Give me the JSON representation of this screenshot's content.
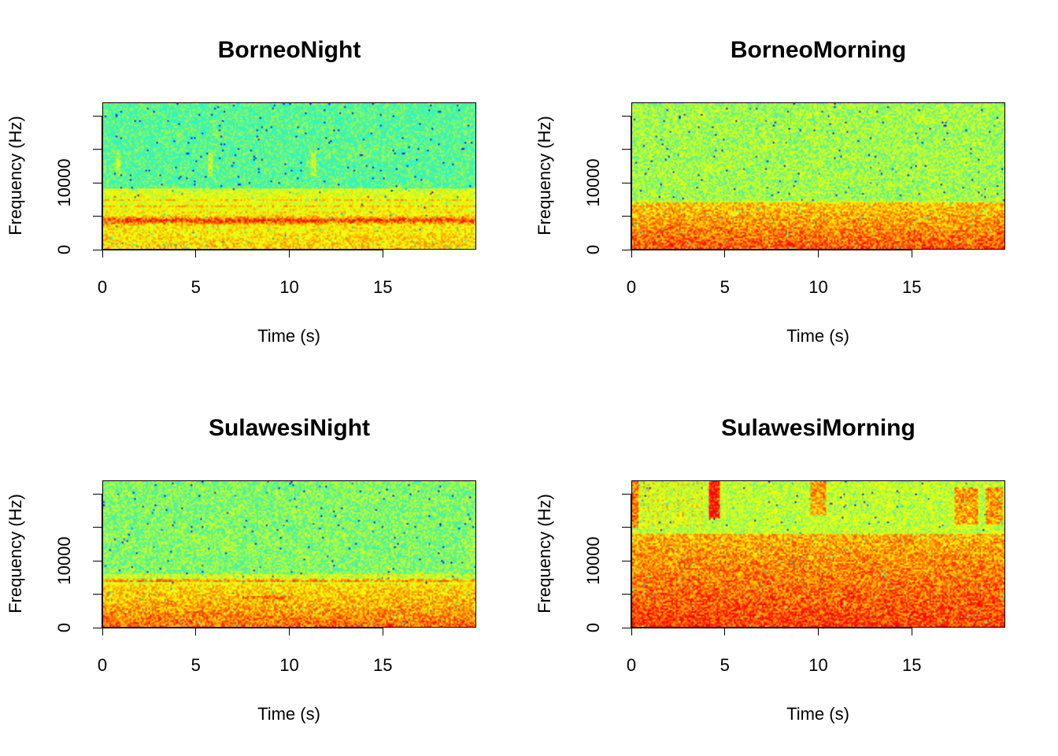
{
  "chart_data": [
    {
      "type": "heatmap",
      "subtype": "spectrogram",
      "title": "BorneoNight",
      "xlabel": "Time (s)",
      "ylabel": "Frequency (Hz)",
      "xlim": [
        0,
        20
      ],
      "ylim": [
        0,
        22050
      ],
      "xticks": [
        0,
        5,
        10,
        15
      ],
      "xtick_labels": [
        "0",
        "5",
        "10",
        "15"
      ],
      "yticks": [
        0,
        5000,
        10000,
        15000,
        20000
      ],
      "ytick_labels": [
        "0",
        "",
        "10000",
        "",
        ""
      ],
      "colormap": [
        "#ff0000",
        "#ffa500",
        "#ffff00",
        "#7fff7f",
        "#00ffff",
        "#0000ff"
      ],
      "background_level": 0.62,
      "features": {
        "bands": [
          {
            "freq_hz": 4300,
            "width_hz": 1400,
            "intensity": 0.95
          },
          {
            "freq_hz": 5600,
            "width_hz": 400,
            "intensity": 0.8
          },
          {
            "freq_hz": 6400,
            "width_hz": 400,
            "intensity": 0.8
          },
          {
            "freq_hz": 7400,
            "width_hz": 300,
            "intensity": 0.75
          },
          {
            "freq_hz": 8600,
            "width_hz": 600,
            "intensity": 0.6
          },
          {
            "freq_hz": 1800,
            "width_hz": 200,
            "intensity": 0.7
          },
          {
            "freq_hz": 3000,
            "width_hz": 800,
            "intensity": 0.55
          },
          {
            "freq_hz": 13200,
            "width_hz": 400,
            "intensity": 0.3
          }
        ],
        "low_region": {
          "below_hz": 9200,
          "level": 0.35
        },
        "calls": [
          {
            "t": 0.7,
            "dt": 0.25,
            "f0": 11000,
            "f1": 14500,
            "intensity": 0.55
          },
          {
            "t": 5.6,
            "dt": 0.25,
            "f0": 11000,
            "f1": 14500,
            "intensity": 0.55
          },
          {
            "t": 11.2,
            "dt": 0.25,
            "f0": 11000,
            "f1": 14500,
            "intensity": 0.55
          },
          {
            "t": 12.0,
            "dt": 4.0,
            "f0": 13700,
            "f1": 16000,
            "intensity": 0.4
          }
        ]
      }
    },
    {
      "type": "heatmap",
      "subtype": "spectrogram",
      "title": "BorneoMorning",
      "xlabel": "Time (s)",
      "ylabel": "Frequency (Hz)",
      "xlim": [
        0,
        20
      ],
      "ylim": [
        0,
        22050
      ],
      "xticks": [
        0,
        5,
        10,
        15
      ],
      "xtick_labels": [
        "0",
        "5",
        "10",
        "15"
      ],
      "yticks": [
        0,
        5000,
        10000,
        15000,
        20000
      ],
      "ytick_labels": [
        "0",
        "",
        "10000",
        "",
        ""
      ],
      "colormap": [
        "#ff0000",
        "#ffa500",
        "#ffff00",
        "#7fff7f",
        "#00ffff",
        "#0000ff"
      ],
      "background_level": 0.5,
      "features": {
        "bands": [
          {
            "freq_hz": 6800,
            "width_hz": 500,
            "intensity": 0.85
          },
          {
            "freq_hz": 5700,
            "width_hz": 300,
            "intensity": 0.8
          },
          {
            "freq_hz": 3000,
            "width_hz": 800,
            "intensity": 0.65
          },
          {
            "freq_hz": 700,
            "width_hz": 1200,
            "intensity": 0.6
          },
          {
            "freq_hz": 11200,
            "width_hz": 200,
            "intensity": 0.3
          }
        ],
        "low_region": {
          "below_hz": 7000,
          "level": 0.4
        },
        "calls": [
          {
            "t": 11.9,
            "dt": 0.08,
            "f0": 0,
            "f1": 22050,
            "intensity": 0.5
          }
        ]
      }
    },
    {
      "type": "heatmap",
      "subtype": "spectrogram",
      "title": "SulawesiNight",
      "xlabel": "Time (s)",
      "ylabel": "Frequency (Hz)",
      "xlim": [
        0,
        20
      ],
      "ylim": [
        0,
        22050
      ],
      "xticks": [
        0,
        5,
        10,
        15
      ],
      "xtick_labels": [
        "0",
        "5",
        "10",
        "15"
      ],
      "yticks": [
        0,
        5000,
        10000,
        15000,
        20000
      ],
      "ytick_labels": [
        "0",
        "",
        "10000",
        "",
        ""
      ],
      "colormap": [
        "#ff0000",
        "#ffa500",
        "#ffff00",
        "#7fff7f",
        "#00ffff",
        "#0000ff"
      ],
      "background_level": 0.55,
      "features": {
        "bands": [
          {
            "freq_hz": 7000,
            "width_hz": 500,
            "intensity": 0.9
          },
          {
            "freq_hz": 7800,
            "width_hz": 400,
            "intensity": 0.7
          },
          {
            "freq_hz": 200,
            "width_hz": 500,
            "intensity": 0.75
          }
        ],
        "low_region": {
          "below_hz": 6500,
          "level": 0.42
        },
        "calls": [
          {
            "t": 7.5,
            "dt": 2.3,
            "f0": 4300,
            "f1": 4700,
            "intensity": 0.85
          },
          {
            "t": 14.6,
            "dt": 0.08,
            "f0": 0,
            "f1": 22050,
            "intensity": 0.45
          },
          {
            "t": 18.5,
            "dt": 0.08,
            "f0": 0,
            "f1": 22050,
            "intensity": 0.45
          }
        ]
      }
    },
    {
      "type": "heatmap",
      "subtype": "spectrogram",
      "title": "SulawesiMorning",
      "xlabel": "Time (s)",
      "ylabel": "Frequency (Hz)",
      "xlim": [
        0,
        20
      ],
      "ylim": [
        0,
        22050
      ],
      "xticks": [
        0,
        5,
        10,
        15
      ],
      "xtick_labels": [
        "0",
        "5",
        "10",
        "15"
      ],
      "yticks": [
        0,
        5000,
        10000,
        15000,
        20000
      ],
      "ytick_labels": [
        "0",
        "",
        "10000",
        "",
        ""
      ],
      "colormap": [
        "#ff0000",
        "#ffa500",
        "#ffff00",
        "#7fff7f",
        "#00ffff",
        "#0000ff"
      ],
      "background_level": 0.45,
      "features": {
        "bands": [
          {
            "freq_hz": 6000,
            "width_hz": 500,
            "intensity": 0.7
          },
          {
            "freq_hz": 8500,
            "width_hz": 500,
            "intensity": 0.6
          },
          {
            "freq_hz": 2000,
            "width_hz": 200,
            "intensity": 0.75
          },
          {
            "freq_hz": 200,
            "width_hz": 400,
            "intensity": 0.8
          }
        ],
        "low_region": {
          "below_hz": 14000,
          "level": 0.38
        },
        "calls": [
          {
            "t": 0.0,
            "dt": 0.3,
            "f0": 15000,
            "f1": 22050,
            "intensity": 0.85
          },
          {
            "t": 4.1,
            "dt": 0.6,
            "f0": 16500,
            "f1": 22050,
            "intensity": 0.95
          },
          {
            "t": 9.6,
            "dt": 0.8,
            "f0": 17000,
            "f1": 22050,
            "intensity": 0.8
          },
          {
            "t": 17.3,
            "dt": 1.3,
            "f0": 15500,
            "f1": 21000,
            "intensity": 0.8
          },
          {
            "t": 19.0,
            "dt": 0.9,
            "f0": 15500,
            "f1": 21000,
            "intensity": 0.8
          },
          {
            "t": 5.6,
            "dt": 0.6,
            "f0": 2500,
            "f1": 3200,
            "intensity": 0.95
          },
          {
            "t": 16.5,
            "dt": 0.6,
            "f0": 2500,
            "f1": 3200,
            "intensity": 0.95
          },
          {
            "t": 5.6,
            "dt": 0.06,
            "f0": 6000,
            "f1": 10000,
            "intensity": 0.8
          }
        ],
        "vertical_streaks": {
          "t0": 0.3,
          "t1": 4.0,
          "count": 14,
          "f0": 15000,
          "f1": 22050,
          "intensity": 0.7
        }
      }
    }
  ]
}
